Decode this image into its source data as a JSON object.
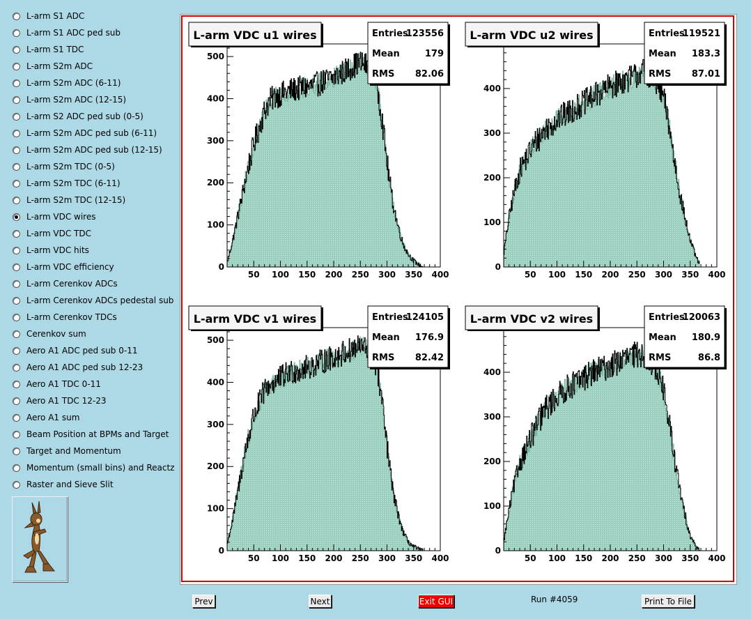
{
  "sidebar": {
    "items": [
      {
        "label": "L-arm S1 ADC",
        "selected": false
      },
      {
        "label": "L-arm S1 ADC ped sub",
        "selected": false
      },
      {
        "label": "L-arm S1 TDC",
        "selected": false
      },
      {
        "label": "L-arm S2m ADC",
        "selected": false
      },
      {
        "label": "L-arm S2m ADC (6-11)",
        "selected": false
      },
      {
        "label": "L-arm S2m ADC (12-15)",
        "selected": false
      },
      {
        "label": "L-arm S2 ADC ped sub (0-5)",
        "selected": false
      },
      {
        "label": "L-arm S2m ADC ped sub (6-11)",
        "selected": false
      },
      {
        "label": "L-arm S2m ADC ped sub (12-15)",
        "selected": false
      },
      {
        "label": "L-arm S2m TDC (0-5)",
        "selected": false
      },
      {
        "label": "L-arm S2m TDC (6-11)",
        "selected": false
      },
      {
        "label": "L-arm S2m TDC (12-15)",
        "selected": false
      },
      {
        "label": "L-arm VDC wires",
        "selected": true
      },
      {
        "label": "L-arm VDC TDC",
        "selected": false
      },
      {
        "label": "L-arm VDC hits",
        "selected": false
      },
      {
        "label": "L-arm VDC efficiency",
        "selected": false
      },
      {
        "label": "L-arm Cerenkov ADCs",
        "selected": false
      },
      {
        "label": "L-arm Cerenkov ADCs pedestal sub",
        "selected": false
      },
      {
        "label": "L-arm Cerenkov TDCs",
        "selected": false
      },
      {
        "label": "Cerenkov sum",
        "selected": false
      },
      {
        "label": "Aero A1 ADC ped sub 0-11",
        "selected": false
      },
      {
        "label": "Aero A1 ADC ped sub 12-23",
        "selected": false
      },
      {
        "label": "Aero A1 TDC 0-11",
        "selected": false
      },
      {
        "label": "Aero A1 TDC 12-23",
        "selected": false
      },
      {
        "label": "Aero A1 sum",
        "selected": false
      },
      {
        "label": "Beam Position at BPMs and Target",
        "selected": false
      },
      {
        "label": "Target and Momentum",
        "selected": false
      },
      {
        "label": "Momentum (small bins) and Reactz",
        "selected": false
      },
      {
        "label": "Raster and Sieve Slit",
        "selected": false
      }
    ],
    "logo_icon": "coyote-logo-icon"
  },
  "buttons": {
    "prev": "Prev",
    "next": "Next",
    "exit": "Exit GUI",
    "print": "Print To File"
  },
  "run_label": "Run #4059",
  "colors": {
    "background": "#add8e6",
    "canvas_border": "#d00000",
    "hist_fill": "#9bd0c0",
    "hist_ref_line": "#7fb8a0",
    "hist_line": "#000000",
    "exit_button": "#ee0000"
  },
  "chart_data": [
    {
      "type": "bar",
      "title": "L-arm VDC u1 wires",
      "stats": {
        "entries": "123556",
        "mean": "179",
        "rms": "82.06"
      },
      "xlim": [
        0,
        400
      ],
      "ylim": [
        0,
        530
      ],
      "xticks": [
        50,
        100,
        150,
        200,
        250,
        300,
        350,
        400
      ],
      "yticks": [
        0,
        100,
        200,
        300,
        400,
        500
      ],
      "profile_x": [
        0,
        10,
        20,
        30,
        40,
        50,
        60,
        70,
        80,
        90,
        100,
        120,
        140,
        160,
        180,
        200,
        220,
        240,
        250,
        260,
        270,
        280,
        290,
        300,
        310,
        320,
        330,
        340,
        350,
        360,
        368
      ],
      "profile_y": [
        10,
        60,
        120,
        180,
        240,
        290,
        330,
        370,
        395,
        405,
        410,
        420,
        425,
        430,
        440,
        450,
        465,
        480,
        485,
        480,
        470,
        440,
        360,
        250,
        160,
        100,
        55,
        30,
        15,
        5,
        0
      ]
    },
    {
      "type": "bar",
      "title": "L-arm VDC u2 wires",
      "stats": {
        "entries": "119521",
        "mean": "183.3",
        "rms": "87.01"
      },
      "xlim": [
        0,
        400
      ],
      "ylim": [
        0,
        500
      ],
      "xticks": [
        50,
        100,
        150,
        200,
        250,
        300,
        350,
        400
      ],
      "yticks": [
        0,
        100,
        200,
        300,
        400
      ],
      "profile_x": [
        0,
        10,
        20,
        30,
        40,
        50,
        60,
        70,
        80,
        100,
        120,
        140,
        160,
        180,
        200,
        220,
        240,
        250,
        260,
        270,
        280,
        290,
        300,
        310,
        320,
        330,
        340,
        350,
        360,
        370
      ],
      "profile_y": [
        30,
        110,
        170,
        215,
        240,
        260,
        280,
        295,
        310,
        330,
        345,
        360,
        375,
        390,
        405,
        415,
        425,
        430,
        440,
        435,
        425,
        405,
        380,
        320,
        240,
        170,
        110,
        60,
        25,
        0
      ]
    },
    {
      "type": "bar",
      "title": "L-arm VDC v1 wires",
      "stats": {
        "entries": "124105",
        "mean": "176.9",
        "rms": "82.42"
      },
      "xlim": [
        0,
        400
      ],
      "ylim": [
        0,
        530
      ],
      "xticks": [
        50,
        100,
        150,
        200,
        250,
        300,
        350,
        400
      ],
      "yticks": [
        0,
        100,
        200,
        300,
        400,
        500
      ],
      "profile_x": [
        0,
        10,
        20,
        30,
        40,
        50,
        60,
        70,
        80,
        90,
        100,
        120,
        140,
        160,
        180,
        200,
        220,
        240,
        250,
        260,
        270,
        280,
        290,
        300,
        310,
        320,
        330,
        340,
        350,
        360,
        368
      ],
      "profile_y": [
        15,
        70,
        140,
        210,
        270,
        320,
        350,
        380,
        395,
        400,
        410,
        425,
        430,
        440,
        450,
        460,
        470,
        480,
        485,
        480,
        470,
        440,
        360,
        250,
        150,
        90,
        45,
        20,
        10,
        4,
        0
      ]
    },
    {
      "type": "bar",
      "title": "L-arm VDC v2 wires",
      "stats": {
        "entries": "120063",
        "mean": "180.9",
        "rms": "86.8"
      },
      "xlim": [
        0,
        400
      ],
      "ylim": [
        0,
        500
      ],
      "xticks": [
        50,
        100,
        150,
        200,
        250,
        300,
        350,
        400
      ],
      "yticks": [
        0,
        100,
        200,
        300,
        400
      ],
      "profile_x": [
        0,
        10,
        20,
        30,
        40,
        50,
        60,
        70,
        80,
        100,
        120,
        140,
        160,
        180,
        200,
        220,
        240,
        250,
        260,
        270,
        280,
        290,
        300,
        310,
        320,
        330,
        340,
        350,
        360,
        370
      ],
      "profile_y": [
        20,
        90,
        150,
        195,
        225,
        250,
        275,
        300,
        320,
        345,
        365,
        380,
        395,
        405,
        415,
        425,
        435,
        440,
        440,
        435,
        420,
        400,
        360,
        290,
        210,
        140,
        80,
        35,
        10,
        0
      ]
    }
  ]
}
